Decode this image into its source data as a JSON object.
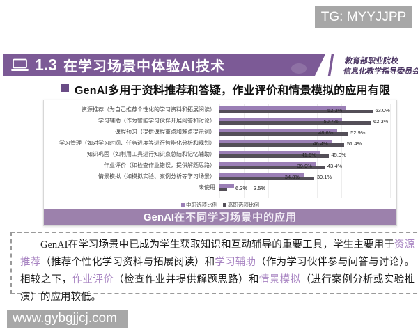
{
  "watermark_top": "TG: MYYJJPP",
  "watermark_bottom": "www.gybgjjcj.com",
  "header": {
    "section_number": "1.3",
    "title": "在学习场景中体验AI技术",
    "org_line1": "教育部职业院校",
    "org_line2": "信息化教学指导委员会"
  },
  "bullet": {
    "prefix": "GenAI",
    "text": "多用于资料推荐和答疑，作业评价和情景模拟的应用有限"
  },
  "chart_data": {
    "type": "bar",
    "orientation": "horizontal",
    "title": "GenAI在不同学习场景中的应用",
    "title_prefix": "GenAI",
    "title_rest": "在不同学习场景中的应用",
    "categories": [
      "资源推荐（为自己推荐个性化的学习资料和拓展阅读）",
      "学习辅助（作为智能学习伙伴开展问答和讨论）",
      "课程预习（提供课程重点和难点提示词）",
      "学习管理（如对学习时间、任务进度等进行智能化分析和规划）",
      "知识巩固（如利用工具进行知识点总结和记忆辅助）",
      "作业评价（如检查作业错误，提供解题思路）",
      "情景模拟（如模拟实验、案例分析等学习场景）",
      "未使用"
    ],
    "series": [
      {
        "name": "中职选项比例",
        "color": "#9b7fb6",
        "values": [
          52.3,
          50.7,
          48.6,
          46.4,
          41.6,
          39.9,
          34.8,
          6.3
        ]
      },
      {
        "name": "高职选项比例",
        "color": "#544f58",
        "values": [
          63.0,
          62.3,
          52.9,
          51.4,
          45.0,
          43.4,
          39.1,
          3.5
        ]
      }
    ],
    "value_labels": [
      [
        "52.3%",
        "63.0%"
      ],
      [
        "50.7%",
        "62.3%"
      ],
      [
        "48.6%",
        "52.9%"
      ],
      [
        "46.4%",
        "51.4%"
      ],
      [
        "41.6%",
        "45.0%"
      ],
      [
        "39.9%",
        "43.4%"
      ],
      [
        "34.8%",
        "39.1%"
      ],
      [
        "6.3%",
        "3.5%"
      ]
    ],
    "xlim": [
      0,
      70
    ],
    "grid": true,
    "legend_position": "bottom"
  },
  "summary": {
    "segments": [
      {
        "t": "GenAI在学习场景中已成为学生获取知识和互动辅导的重要工具，学生主要用于",
        "h": false
      },
      {
        "t": "资源推荐",
        "h": true
      },
      {
        "t": "（推荐个性化学习资料与拓展阅读）和",
        "h": false
      },
      {
        "t": "学习辅助",
        "h": true
      },
      {
        "t": "（作为学习伙伴参与问答与讨论）。相较之下，",
        "h": false
      },
      {
        "t": "作业评价",
        "h": true
      },
      {
        "t": "（检查作业并提供解题思路）和",
        "h": false
      },
      {
        "t": "情景模拟",
        "h": true
      },
      {
        "t": "（进行案例分析或实验推演）的应用较低。",
        "h": false
      }
    ]
  },
  "colors": {
    "banner_purple": "#7c5a96",
    "chart_title_bar": "#9c81ac",
    "series_zhongzhi": "#9b7fb6",
    "series_gaozhi": "#544f58",
    "highlight_text": "#a884c2",
    "watermark_bg": "#a7a7a7"
  }
}
